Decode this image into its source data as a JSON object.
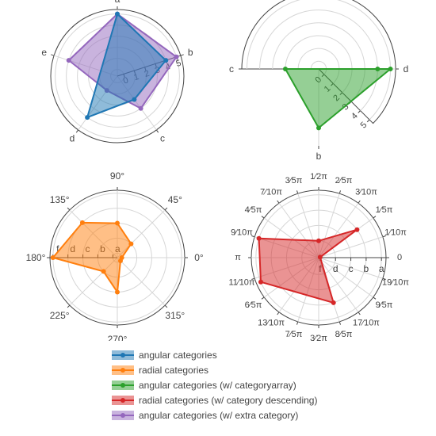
{
  "chart_data": [
    {
      "type": "radar",
      "angular_ticks": [
        "a",
        "b",
        "c",
        "d",
        "e"
      ],
      "radial_ticks": [
        "0",
        "1",
        "2",
        "3",
        "4",
        "5"
      ],
      "radial_range": [
        -0.6,
        5.4
      ],
      "series": [
        {
          "name": "angular categories",
          "color": "#1f77b4",
          "theta": [
            "a",
            "b",
            "c",
            "d",
            "a"
          ],
          "r": [
            5,
            4,
            2,
            4,
            5
          ]
        },
        {
          "name": "angular categories (w/ extra category)",
          "color": "#9467bd",
          "theta": [
            "a",
            "b",
            "c",
            "d",
            "e",
            "a"
          ],
          "r": [
            5,
            5,
            3,
            1,
            4,
            5
          ]
        }
      ]
    },
    {
      "type": "radar",
      "sector": [
        -45,
        180
      ],
      "angular_ticks": [
        "d",
        "b",
        "c"
      ],
      "radial_ticks": [
        "0",
        "1",
        "2",
        "3",
        "4",
        "5"
      ],
      "radial_range": [
        -0.6,
        5.4
      ],
      "series": [
        {
          "name": "angular categories (w/ categoryarray)",
          "color": "#2ca02c",
          "theta": [
            "d",
            "b",
            "c",
            "d"
          ],
          "r": [
            5,
            4,
            2,
            4
          ]
        }
      ]
    },
    {
      "type": "radar",
      "angular_ticks": [
        "0°",
        "45°",
        "90°",
        "135°",
        "180°",
        "225°",
        "270°",
        "315°"
      ],
      "radial_categories": [
        "a",
        "b",
        "c",
        "d",
        "f"
      ],
      "series": [
        {
          "name": "radial categories",
          "color": "#ff7f0e",
          "theta": [
            0,
            45,
            90,
            135,
            180,
            225,
            270,
            315,
            360
          ],
          "r": [
            "a",
            "b",
            "c",
            "d",
            "f",
            "b",
            "c",
            "a",
            "a"
          ]
        }
      ]
    },
    {
      "type": "radar",
      "angular_ticks": [
        "0",
        "1/10π",
        "1/5π",
        "3/10π",
        "2/5π",
        "1/2π",
        "3/5π",
        "7/10π",
        "4/5π",
        "9/10π",
        "π",
        "11/10π",
        "6/5π",
        "13/10π",
        "7/5π",
        "3/2π",
        "8/5π",
        "17/10π",
        "9/5π",
        "19/10π"
      ],
      "radial_categories": [
        "a",
        "b",
        "c",
        "d",
        "f"
      ],
      "series": [
        {
          "name": "radial categories (w/ category descending)",
          "color": "#d62728",
          "theta_rad": [
            0.31,
            0.63,
            1.57,
            2.83,
            3.54,
            5.03
          ],
          "r": [
            "f",
            "b",
            "d",
            "a",
            "a",
            "b"
          ]
        }
      ]
    }
  ],
  "legend": [
    {
      "label": "angular categories",
      "color": "#1f77b4"
    },
    {
      "label": "radial categories",
      "color": "#ff7f0e"
    },
    {
      "label": "angular categories (w/ categoryarray)",
      "color": "#2ca02c"
    },
    {
      "label": "radial categories (w/ category descending)",
      "color": "#d62728"
    },
    {
      "label": "angular categories (w/ extra category)",
      "color": "#9467bd"
    }
  ]
}
